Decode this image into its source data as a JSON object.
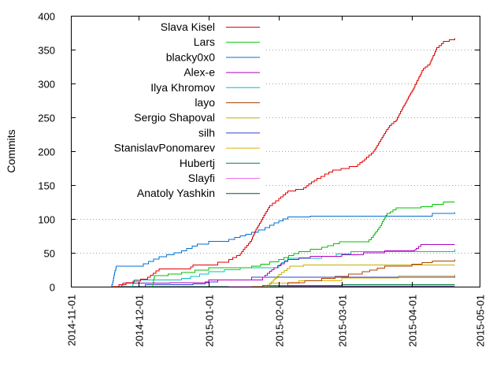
{
  "chart_data": {
    "type": "line",
    "title": "",
    "xlabel": "",
    "ylabel": "Commits",
    "xlim": [
      "2014-11-01",
      "2015-05-01"
    ],
    "ylim": [
      0,
      400
    ],
    "xticks": [
      "2014-11-01",
      "2014-12-01",
      "2015-01-01",
      "2015-02-01",
      "2015-03-01",
      "2015-04-01",
      "2015-05-01"
    ],
    "yticks": [
      0,
      50,
      100,
      150,
      200,
      250,
      300,
      350,
      400
    ],
    "grid": true,
    "legend_position": "top-left",
    "series": [
      {
        "name": "Slava Kisel",
        "color": "#e00000",
        "points": [
          [
            "2014-11-19",
            0
          ],
          [
            "2014-12-05",
            14
          ],
          [
            "2014-12-10",
            26
          ],
          [
            "2014-12-23",
            26
          ],
          [
            "2014-12-25",
            32
          ],
          [
            "2015-01-05",
            36
          ],
          [
            "2015-01-10",
            40
          ],
          [
            "2015-01-15",
            49
          ],
          [
            "2015-01-20",
            70
          ],
          [
            "2015-01-22",
            85
          ],
          [
            "2015-01-25",
            102
          ],
          [
            "2015-01-28",
            120
          ],
          [
            "2015-02-01",
            130
          ],
          [
            "2015-02-05",
            141
          ],
          [
            "2015-02-12",
            146
          ],
          [
            "2015-02-18",
            160
          ],
          [
            "2015-02-25",
            172
          ],
          [
            "2015-03-08",
            180
          ],
          [
            "2015-03-15",
            200
          ],
          [
            "2015-03-22",
            238
          ],
          [
            "2015-03-25",
            246
          ],
          [
            "2015-03-28",
            265
          ],
          [
            "2015-04-02",
            295
          ],
          [
            "2015-04-06",
            322
          ],
          [
            "2015-04-09",
            330
          ],
          [
            "2015-04-12",
            353
          ],
          [
            "2015-04-15",
            362
          ],
          [
            "2015-04-20",
            367
          ]
        ]
      },
      {
        "name": "Lars",
        "color": "#00c000",
        "points": [
          [
            "2014-12-07",
            0
          ],
          [
            "2014-12-08",
            16
          ],
          [
            "2014-12-20",
            21
          ],
          [
            "2015-01-01",
            28
          ],
          [
            "2015-01-20",
            30
          ],
          [
            "2015-02-01",
            40
          ],
          [
            "2015-02-10",
            52
          ],
          [
            "2015-02-20",
            58
          ],
          [
            "2015-02-28",
            66
          ],
          [
            "2015-03-12",
            66
          ],
          [
            "2015-03-15",
            76
          ],
          [
            "2015-03-18",
            90
          ],
          [
            "2015-03-21",
            108
          ],
          [
            "2015-03-25",
            116
          ],
          [
            "2015-04-05",
            118
          ],
          [
            "2015-04-15",
            125
          ],
          [
            "2015-04-20",
            125
          ]
        ]
      },
      {
        "name": "blacky0x0",
        "color": "#0070d0",
        "points": [
          [
            "2014-11-19",
            0
          ],
          [
            "2014-11-21",
            30
          ],
          [
            "2014-12-03",
            34
          ],
          [
            "2014-12-10",
            44
          ],
          [
            "2014-12-20",
            53
          ],
          [
            "2014-12-27",
            63
          ],
          [
            "2015-01-01",
            67
          ],
          [
            "2015-01-10",
            70
          ],
          [
            "2015-01-15",
            75
          ],
          [
            "2015-01-20",
            80
          ],
          [
            "2015-01-26",
            87
          ],
          [
            "2015-01-30",
            94
          ],
          [
            "2015-02-05",
            103
          ],
          [
            "2015-02-15",
            104
          ],
          [
            "2015-03-31",
            104
          ],
          [
            "2015-04-10",
            108
          ],
          [
            "2015-04-20",
            110
          ]
        ]
      },
      {
        "name": "Alex-e",
        "color": "#b000c0",
        "points": [
          [
            "2014-11-23",
            0
          ],
          [
            "2014-11-24",
            5
          ],
          [
            "2014-12-15",
            6
          ],
          [
            "2015-01-01",
            10
          ],
          [
            "2015-01-25",
            14
          ],
          [
            "2015-01-30",
            28
          ],
          [
            "2015-02-05",
            40
          ],
          [
            "2015-02-15",
            45
          ],
          [
            "2015-03-01",
            47
          ],
          [
            "2015-03-20",
            53
          ],
          [
            "2015-04-02",
            54
          ],
          [
            "2015-04-05",
            62
          ],
          [
            "2015-04-20",
            62
          ]
        ]
      },
      {
        "name": "Ilya Khromov",
        "color": "#00c0c0",
        "points": [
          [
            "2014-11-28",
            0
          ],
          [
            "2014-11-29",
            10
          ],
          [
            "2014-12-20",
            12
          ],
          [
            "2015-01-01",
            22
          ],
          [
            "2015-01-15",
            28
          ],
          [
            "2015-02-01",
            32
          ],
          [
            "2015-02-05",
            42
          ],
          [
            "2015-02-20",
            45
          ],
          [
            "2015-03-05",
            52
          ],
          [
            "2015-04-20",
            55
          ]
        ]
      },
      {
        "name": "layo",
        "color": "#b04000",
        "points": [
          [
            "2015-01-20",
            0
          ],
          [
            "2015-01-25",
            2
          ],
          [
            "2015-02-05",
            6
          ],
          [
            "2015-02-20",
            12
          ],
          [
            "2015-03-10",
            22
          ],
          [
            "2015-03-20",
            30
          ],
          [
            "2015-04-01",
            33
          ],
          [
            "2015-04-10",
            38
          ],
          [
            "2015-04-20",
            40
          ]
        ]
      },
      {
        "name": "Sergio Shapoval",
        "color": "#c0b000",
        "points": [
          [
            "2015-01-26",
            0
          ],
          [
            "2015-01-28",
            4
          ],
          [
            "2015-02-01",
            18
          ],
          [
            "2015-02-06",
            30
          ],
          [
            "2015-02-12",
            32
          ],
          [
            "2015-04-20",
            32
          ]
        ]
      },
      {
        "name": "silh",
        "color": "#3040d0",
        "points": [
          [
            "2014-12-03",
            0
          ],
          [
            "2014-12-04",
            3
          ],
          [
            "2014-12-25",
            4
          ],
          [
            "2015-01-05",
            10
          ],
          [
            "2015-01-20",
            14
          ],
          [
            "2015-04-20",
            15
          ]
        ]
      },
      {
        "name": "StanislavPonomarev",
        "color": "#e0b000",
        "points": [
          [
            "2015-01-26",
            0
          ],
          [
            "2015-01-28",
            5
          ],
          [
            "2015-02-10",
            9
          ],
          [
            "2015-03-01",
            13
          ],
          [
            "2015-04-20",
            18
          ]
        ]
      },
      {
        "name": "Hubertj",
        "color": "#008040",
        "points": [
          [
            "2015-01-25",
            0
          ],
          [
            "2015-02-05",
            2
          ],
          [
            "2015-03-01",
            3
          ],
          [
            "2015-04-20",
            3
          ]
        ]
      },
      {
        "name": "Slayfi",
        "color": "#f070f0",
        "points": [
          [
            "2015-01-10",
            0
          ],
          [
            "2015-02-01",
            1
          ],
          [
            "2015-04-20",
            1
          ]
        ]
      },
      {
        "name": "Anatoly Yashkin",
        "color": "#005050",
        "points": [
          [
            "2014-11-19",
            0
          ],
          [
            "2015-04-20",
            0
          ]
        ]
      }
    ]
  }
}
